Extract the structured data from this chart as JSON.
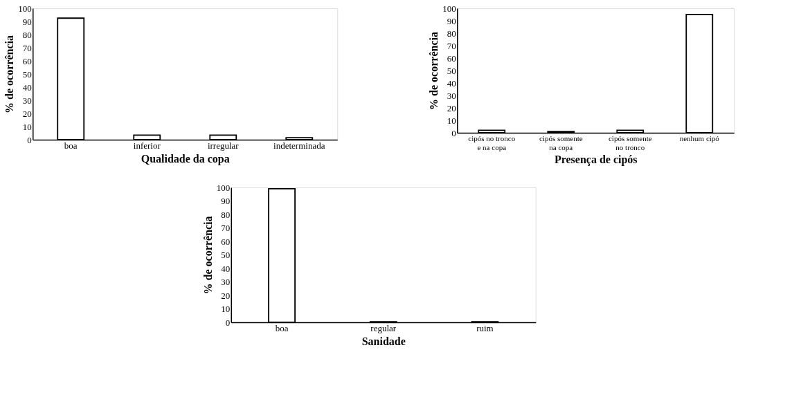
{
  "chart_data": [
    {
      "type": "bar",
      "xlabel": "Qualidade da copa",
      "ylabel": "% de ocorrência",
      "categories": [
        "boa",
        "inferior",
        "irregular",
        "indeterminada"
      ],
      "values": [
        92.5,
        3.5,
        3.5,
        1.5
      ],
      "color": "#ffffff",
      "ylim": [
        0,
        100
      ],
      "yticks": [
        0,
        10,
        20,
        30,
        40,
        50,
        60,
        70,
        80,
        90,
        100
      ],
      "grid": false
    },
    {
      "type": "bar",
      "xlabel": "Presença de cipós",
      "ylabel": "% de ocorrência",
      "categories": [
        "cipós no tronco e na copa",
        "cipós somente na copa",
        "cipós somente no tronco",
        "nenhum cipó"
      ],
      "values": [
        2,
        1,
        2,
        95
      ],
      "color": "#ffffff",
      "ylim": [
        0,
        100
      ],
      "yticks": [
        0,
        10,
        20,
        30,
        40,
        50,
        60,
        70,
        80,
        90,
        100
      ],
      "grid": false
    },
    {
      "type": "bar",
      "xlabel": "Sanidade",
      "ylabel": "% de ocorrência",
      "categories": [
        "boa",
        "regular",
        "ruim"
      ],
      "values": [
        99,
        0.5,
        0.5
      ],
      "color": "#ffffff",
      "ylim": [
        0,
        100
      ],
      "yticks": [
        0,
        10,
        20,
        30,
        40,
        50,
        60,
        70,
        80,
        90,
        100
      ],
      "grid": false
    }
  ]
}
